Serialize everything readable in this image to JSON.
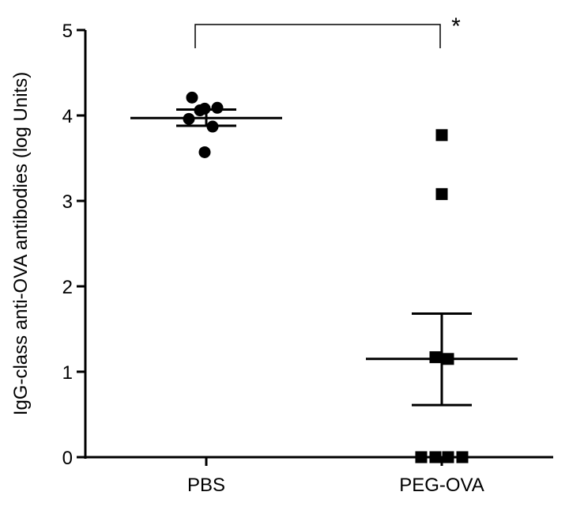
{
  "chart_data": {
    "type": "scatter",
    "ylabel": "IgG-class anti-OVA antibodies (log Units)",
    "ylim": [
      0,
      5
    ],
    "yticks": [
      0,
      1,
      2,
      3,
      4,
      5
    ],
    "categories": [
      "PBS",
      "PEG-OVA"
    ],
    "series": [
      {
        "category": "PBS",
        "marker": "circle",
        "points": [
          {
            "x": -0.09,
            "y": 4.21
          },
          {
            "x": -0.04,
            "y": 4.06
          },
          {
            "x": -0.01,
            "y": 4.08
          },
          {
            "x": 0.07,
            "y": 4.09
          },
          {
            "x": -0.11,
            "y": 3.96
          },
          {
            "x": 0.04,
            "y": 3.87
          },
          {
            "x": -0.01,
            "y": 3.57
          }
        ],
        "mean": 3.97,
        "sem_upper": 4.07,
        "sem_lower": 3.88
      },
      {
        "category": "PEG-OVA",
        "marker": "square",
        "points": [
          {
            "x": 0.0,
            "y": 3.77
          },
          {
            "x": 0.0,
            "y": 3.08
          },
          {
            "x": -0.04,
            "y": 1.17
          },
          {
            "x": 0.04,
            "y": 1.15
          },
          {
            "x": -0.13,
            "y": 0.0
          },
          {
            "x": -0.04,
            "y": 0.0
          },
          {
            "x": 0.04,
            "y": 0.0
          },
          {
            "x": 0.13,
            "y": 0.0
          }
        ],
        "mean": 1.15,
        "sem_upper": 1.68,
        "sem_lower": 0.61
      }
    ],
    "annotations": [
      {
        "type": "significance-bracket",
        "from": "PBS",
        "to": "PEG-OVA",
        "label": "*"
      }
    ],
    "colors": {
      "marker": "#000000",
      "axis": "#000000"
    }
  }
}
